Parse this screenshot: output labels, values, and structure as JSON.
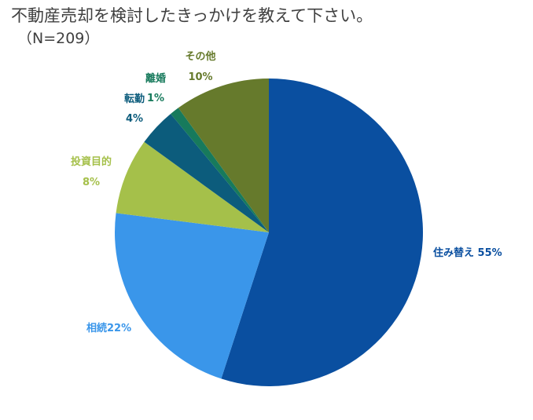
{
  "chart_data": {
    "type": "pie",
    "title": "不動産売却を検討したきっかけを教えて下さい。",
    "subtitle": "（N=209）",
    "categories": [
      "住み替え",
      "相続",
      "投資目的",
      "転勤",
      "離婚",
      "その他"
    ],
    "values": [
      55,
      22,
      8,
      4,
      1,
      10
    ],
    "labels": [
      "住み替え 55%",
      "相続22%",
      "投資目的",
      "転勤",
      "離婚",
      "その他"
    ],
    "percent_labels": [
      "",
      "",
      "8%",
      "4%",
      "1%",
      "10%"
    ],
    "colors": [
      "#0a4fa0",
      "#3a96ea",
      "#a5c04a",
      "#0c5c7c",
      "#177a5c",
      "#667a2c"
    ],
    "label_colors": [
      "#0a4fa0",
      "#3a96ea",
      "#a5c04a",
      "#0c5c7c",
      "#177a5c",
      "#667a2c"
    ],
    "start_angle_deg": 0,
    "direction": "clockwise",
    "legend": "none"
  }
}
